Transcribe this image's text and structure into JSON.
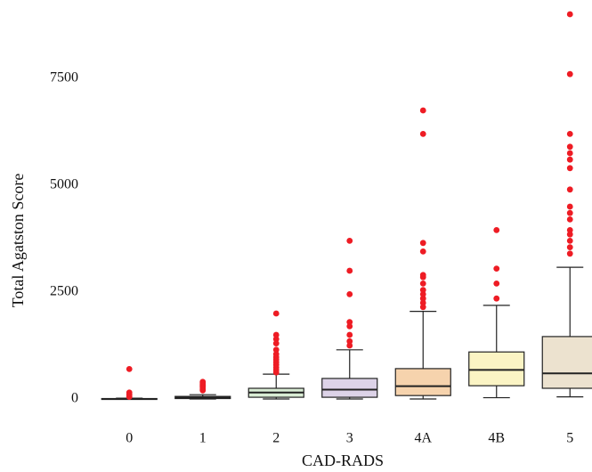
{
  "chart_data": {
    "type": "box",
    "y_label": "Total Agatston Score",
    "x_label": "CAD-RADS",
    "categories": [
      "0",
      "1",
      "2",
      "3",
      "4A",
      "4B",
      "5"
    ],
    "colors": [
      "#d6e4f2",
      "#f3d0d0",
      "#d9ecd4",
      "#ddd3e8",
      "#f6d3ad",
      "#fbf4c4",
      "#ece2cf"
    ],
    "outlier_color": "#ee1c24",
    "ylim": [
      -1700,
      9300
    ],
    "yticks": [
      0,
      2500,
      5000,
      7500
    ],
    "stats": [
      {
        "whislo": 0,
        "q1": 0,
        "median": 0,
        "q3": 10,
        "whishi": 20,
        "outliers": [
          50,
          100,
          150,
          700
        ]
      },
      {
        "whislo": 0,
        "q1": 10,
        "median": 30,
        "q3": 60,
        "whishi": 100,
        "outliers": [
          200,
          220,
          250,
          280,
          300,
          320,
          350,
          380,
          400
        ]
      },
      {
        "whislo": 0,
        "q1": 40,
        "median": 150,
        "q3": 250,
        "whishi": 580,
        "outliers": [
          620,
          680,
          740,
          800,
          860,
          920,
          980,
          1050,
          1150,
          1300,
          1400,
          1500,
          2000
        ]
      },
      {
        "whislo": 0,
        "q1": 40,
        "median": 220,
        "q3": 480,
        "whishi": 1150,
        "outliers": [
          1250,
          1350,
          1500,
          1700,
          1800,
          2450,
          3000,
          3700
        ]
      },
      {
        "whislo": 0,
        "q1": 80,
        "median": 300,
        "q3": 710,
        "whishi": 2050,
        "outliers": [
          2150,
          2250,
          2350,
          2450,
          2550,
          2700,
          2850,
          2900,
          3450,
          3650,
          6200,
          6750
        ]
      },
      {
        "whislo": 30,
        "q1": 310,
        "median": 680,
        "q3": 1100,
        "whishi": 2190,
        "outliers": [
          2350,
          2700,
          3050,
          3950
        ]
      },
      {
        "whislo": 50,
        "q1": 250,
        "median": 600,
        "q3": 1460,
        "whishi": 3080,
        "outliers": [
          3400,
          3550,
          3700,
          3850,
          3950,
          4200,
          4350,
          4500,
          4900,
          5400,
          5600,
          5750,
          5900,
          6200,
          7600,
          9000
        ]
      }
    ]
  }
}
